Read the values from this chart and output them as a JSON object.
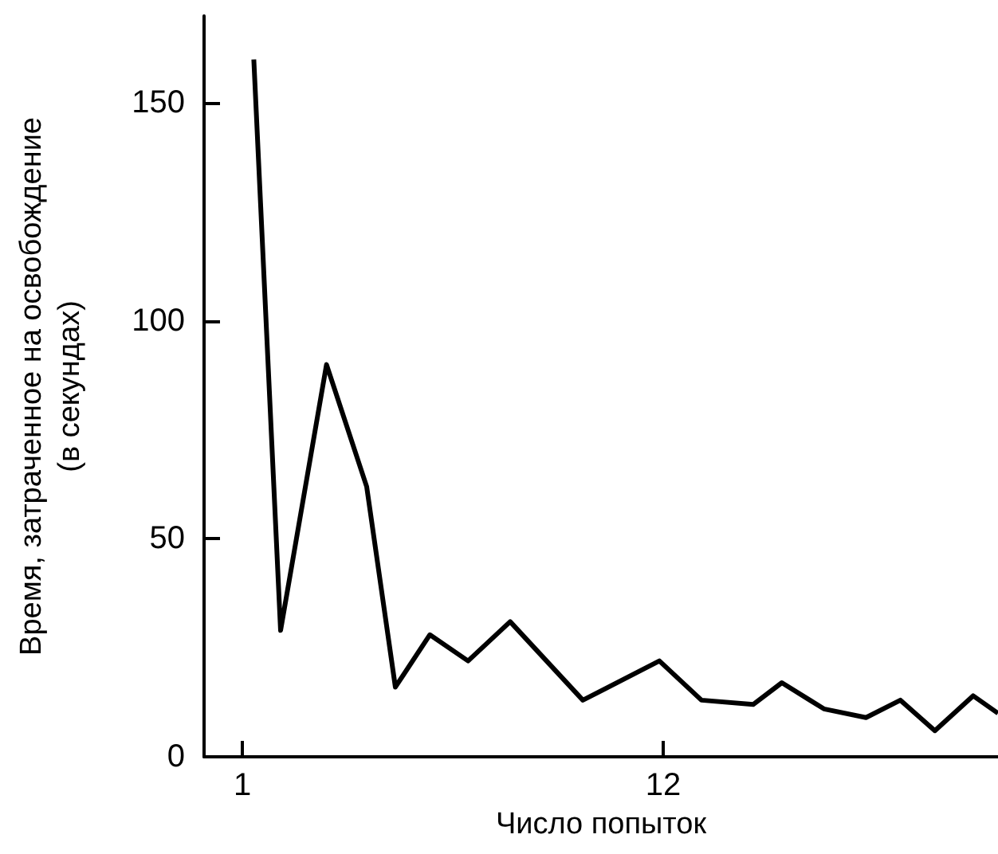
{
  "chart_data": {
    "type": "line",
    "xlabel": "Число попыток",
    "ylabel": "Время, затраченное на освобождение\n(в секундах)",
    "x": [
      1.3,
      2.0,
      3.2,
      4.25,
      5.0,
      5.9,
      6.9,
      8.0,
      9.9,
      11.9,
      13.0,
      14.35,
      15.1,
      16.2,
      17.3,
      18.2,
      19.1,
      20.1,
      20.75
    ],
    "series": [
      {
        "color": "#000000",
        "values": [
          160,
          29,
          90,
          62,
          16,
          28,
          22,
          31,
          13,
          22,
          13,
          12,
          17,
          11,
          9,
          13,
          6,
          14,
          10
        ]
      }
    ],
    "xlim": [
      0,
      20.75
    ],
    "xticks": [
      1,
      12
    ],
    "ylim": [
      0,
      170
    ],
    "yticks": [
      0,
      50,
      100,
      150
    ],
    "grid": false,
    "marker": "none",
    "line_style": "solid"
  }
}
